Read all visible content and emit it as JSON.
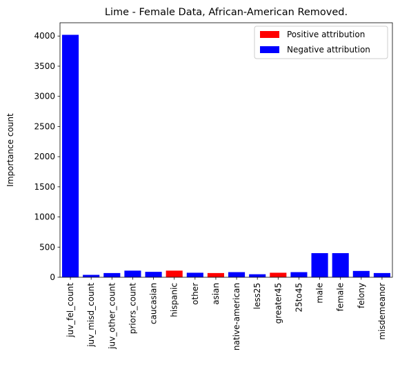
{
  "chart_data": {
    "type": "bar",
    "title": "Lime - Female Data, African-American Removed.",
    "xlabel": "",
    "ylabel": "Importance count",
    "ylim": [
      0,
      4220
    ],
    "yticks": [
      0,
      500,
      1000,
      1500,
      2000,
      2500,
      3000,
      3500,
      4000
    ],
    "categories": [
      "juv_fel_count",
      "juv_misd_count",
      "juv_other_count",
      "priors_count",
      "caucasian",
      "hispanic",
      "other",
      "asian",
      "native-american",
      "less25",
      "greater45",
      "25to45",
      "male",
      "female",
      "felony",
      "misdemeanor"
    ],
    "values": [
      4020,
      40,
      70,
      110,
      90,
      110,
      75,
      70,
      85,
      50,
      75,
      85,
      400,
      400,
      105,
      70
    ],
    "attribution": [
      "negative",
      "negative",
      "negative",
      "negative",
      "negative",
      "positive",
      "negative",
      "positive",
      "negative",
      "negative",
      "positive",
      "negative",
      "negative",
      "negative",
      "negative",
      "negative"
    ],
    "colors": {
      "positive": "#ff0000",
      "negative": "#0000ff"
    },
    "legend": {
      "placement": "top-right",
      "entries": [
        {
          "key": "positive",
          "label": "Positive attribution"
        },
        {
          "key": "negative",
          "label": "Negative attribution"
        }
      ]
    },
    "grid": false
  }
}
